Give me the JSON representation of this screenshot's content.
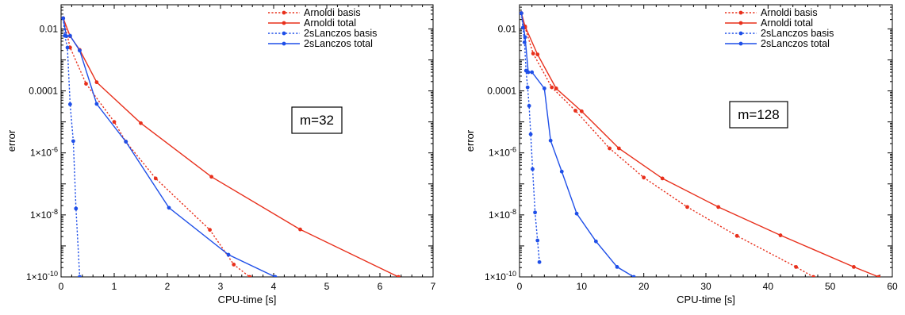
{
  "chart_data": [
    {
      "type": "line",
      "xlabel": "CPU-time [s]",
      "ylabel": "error",
      "xlim": [
        0,
        7
      ],
      "ylim": [
        1e-10,
        0.06
      ],
      "yscale": "log",
      "xticks": [
        0,
        1,
        2,
        3,
        4,
        5,
        6,
        7
      ],
      "xtick_labels": [
        "0",
        "1",
        "2",
        "3",
        "4",
        "5",
        "6",
        "7"
      ],
      "yticks": [
        1e-10,
        1e-08,
        1e-06,
        0.0001,
        0.01
      ],
      "ytick_labels": [
        "1×10-10",
        "1×10-8",
        "1×10-6",
        "0.0001",
        "0.01"
      ],
      "annotation": "m=32",
      "legend_position": "top-right",
      "grid": false,
      "series": [
        {
          "name": "Arnoldi basis",
          "color": "#e8301c",
          "dash": "dotted",
          "x": [
            0.04,
            0.17,
            0.47,
            1.0,
            1.22,
            1.78,
            2.8,
            3.25,
            3.55
          ],
          "y": [
            0.022,
            0.0025,
            0.00017,
            1e-05,
            2.3e-06,
            1.5e-07,
            3.3e-09,
            2.5e-10,
            1e-10
          ]
        },
        {
          "name": "Arnoldi total",
          "color": "#e8301c",
          "dash": "solid",
          "x": [
            0.04,
            0.17,
            0.35,
            0.67,
            1.5,
            2.83,
            4.5,
            6.35
          ],
          "y": [
            0.022,
            0.0058,
            0.0021,
            0.00019,
            9.1e-06,
            1.7e-07,
            3.4e-09,
            1e-10
          ]
        },
        {
          "name": "2sLanczos basis",
          "color": "#1f4fe8",
          "dash": "dotted",
          "x": [
            0.04,
            0.07,
            0.12,
            0.17,
            0.23,
            0.28,
            0.35
          ],
          "y": [
            0.022,
            0.006,
            0.0025,
            3.7e-05,
            2.4e-06,
            1.6e-08,
            1e-10
          ]
        },
        {
          "name": "2sLanczos total",
          "color": "#1f4fe8",
          "dash": "solid",
          "x": [
            0.04,
            0.1,
            0.17,
            0.35,
            0.67,
            1.22,
            2.03,
            3.15,
            4.03
          ],
          "y": [
            0.022,
            0.0058,
            0.006,
            0.002,
            3.8e-05,
            2.3e-06,
            1.7e-08,
            5.2e-10,
            1e-10
          ]
        }
      ]
    },
    {
      "type": "line",
      "xlabel": "CPU-time [s]",
      "ylabel": "error",
      "xlim": [
        0,
        60
      ],
      "ylim": [
        1e-10,
        0.06
      ],
      "yscale": "log",
      "xticks": [
        0,
        10,
        20,
        30,
        40,
        50,
        60
      ],
      "xtick_labels": [
        "0",
        "10",
        "20",
        "30",
        "40",
        "50",
        "60"
      ],
      "yticks": [
        1e-10,
        1e-08,
        1e-06,
        0.0001,
        0.01
      ],
      "ytick_labels": [
        "1×10-10",
        "1×10-8",
        "1×10-6",
        "0.0001",
        "0.01"
      ],
      "annotation": "m=128",
      "legend_position": "top-right",
      "grid": false,
      "series": [
        {
          "name": "Arnoldi basis",
          "color": "#e8301c",
          "dash": "dotted",
          "x": [
            0.3,
            0.9,
            2.2,
            5.2,
            9.0,
            14.5,
            20.0,
            27.0,
            35.0,
            44.5,
            47.3
          ],
          "y": [
            0.032,
            0.011,
            0.0016,
            0.00013,
            2.3e-05,
            1.4e-06,
            1.6e-07,
            1.8e-08,
            2.1e-09,
            2.1e-10,
            1e-10
          ]
        },
        {
          "name": "Arnoldi total",
          "color": "#e8301c",
          "dash": "solid",
          "x": [
            0.3,
            0.9,
            2.9,
            5.9,
            10.0,
            16.0,
            23.0,
            32.0,
            42.0,
            53.8,
            57.8
          ],
          "y": [
            0.032,
            0.012,
            0.0015,
            0.00012,
            2.2e-05,
            1.4e-06,
            1.5e-07,
            1.8e-08,
            2.2e-09,
            2.1e-10,
            1e-10
          ]
        },
        {
          "name": "2sLanczos basis",
          "color": "#1f4fe8",
          "dash": "dotted",
          "x": [
            0.3,
            0.55,
            0.8,
            1.05,
            1.3,
            1.55,
            1.8,
            2.1,
            2.5,
            2.9,
            3.2
          ],
          "y": [
            0.032,
            0.011,
            0.0037,
            0.00045,
            0.00013,
            3.3e-05,
            4e-06,
            3e-07,
            1.2e-08,
            1.5e-09,
            3e-10
          ]
        },
        {
          "name": "2sLanczos total",
          "color": "#1f4fe8",
          "dash": "solid",
          "x": [
            0.3,
            0.9,
            1.4,
            2.0,
            4.0,
            5.0,
            6.8,
            9.2,
            12.3,
            15.7,
            18.4
          ],
          "y": [
            0.032,
            0.0054,
            0.0004,
            0.0004,
            0.00012,
            2.5e-06,
            2.5e-07,
            1.1e-08,
            1.4e-09,
            2.1e-10,
            1e-10
          ]
        }
      ]
    }
  ]
}
